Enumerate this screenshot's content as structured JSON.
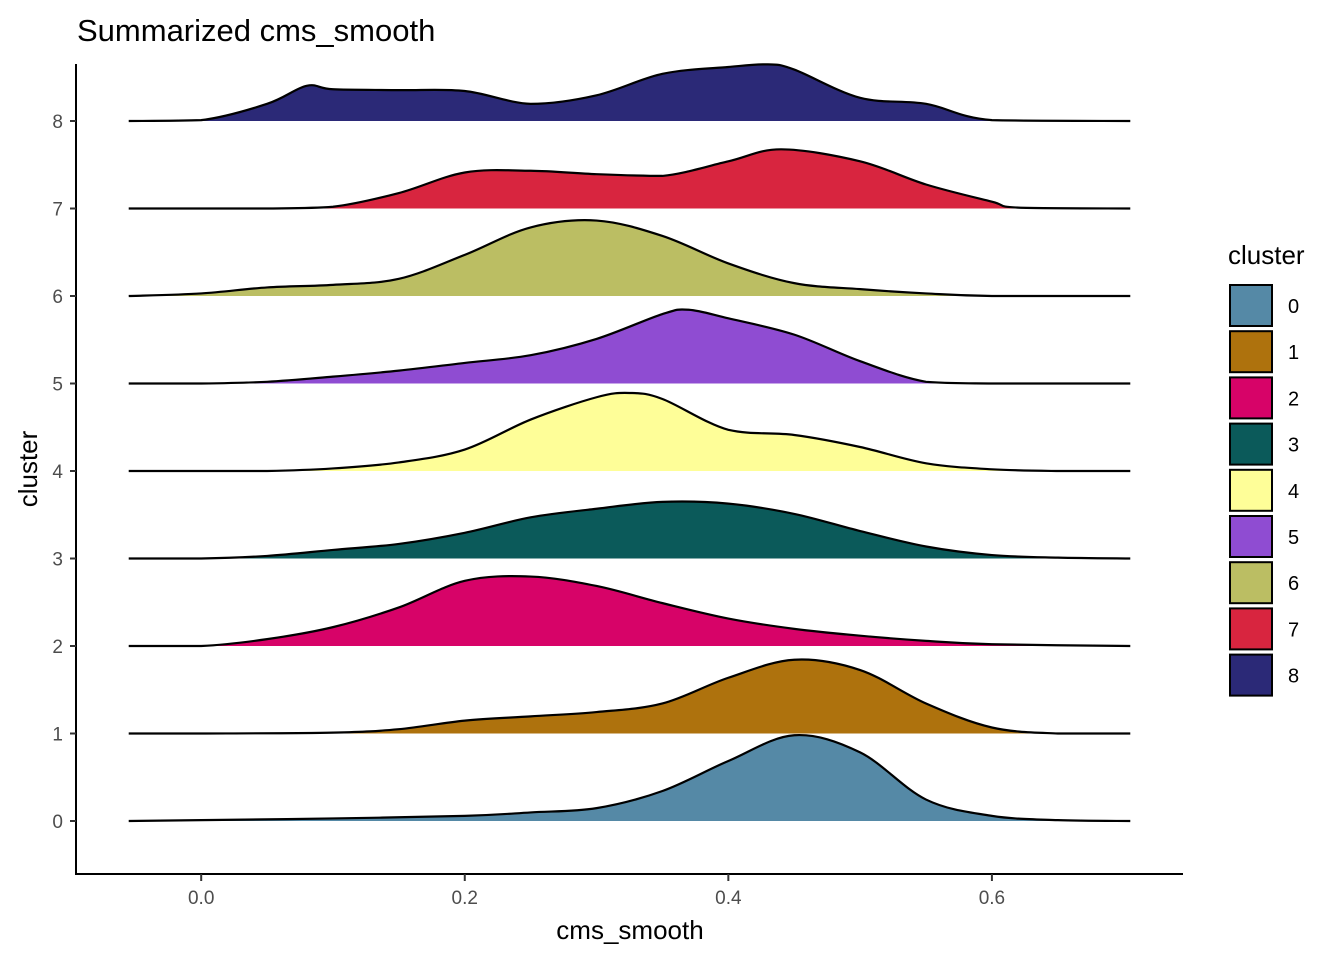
{
  "chart_data": {
    "type": "ridgeline",
    "title": "Summarized cms_smooth",
    "xlabel": "cms_smooth",
    "ylabel": "cluster",
    "xlim": [
      -0.095,
      0.745
    ],
    "x_ticks": [
      0.0,
      0.2,
      0.4,
      0.6
    ],
    "x_tick_labels": [
      "0.0",
      "0.2",
      "0.4",
      "0.6"
    ],
    "density_range": [
      -0.055,
      0.705
    ],
    "y_ticks": [
      0,
      1,
      2,
      3,
      4,
      5,
      6,
      7,
      8
    ],
    "y_tick_labels": [
      "0",
      "1",
      "2",
      "3",
      "4",
      "5",
      "6",
      "7",
      "8"
    ],
    "grid": false,
    "legend": {
      "title": "cluster",
      "position": "right"
    },
    "series": [
      {
        "name": "0",
        "color": "#5589A6",
        "x": [
          -0.055,
          0.0,
          0.1,
          0.2,
          0.25,
          0.3,
          0.35,
          0.4,
          0.45,
          0.5,
          0.55,
          0.6,
          0.65,
          0.705
        ],
        "y": [
          0.0,
          0.01,
          0.03,
          0.06,
          0.1,
          0.15,
          0.35,
          0.7,
          1.0,
          0.8,
          0.25,
          0.06,
          0.01,
          0.0
        ]
      },
      {
        "name": "1",
        "color": "#AE720D",
        "x": [
          -0.055,
          0.0,
          0.1,
          0.15,
          0.2,
          0.25,
          0.3,
          0.35,
          0.4,
          0.45,
          0.5,
          0.55,
          0.6,
          0.65,
          0.705
        ],
        "y": [
          0.0,
          0.0,
          0.01,
          0.05,
          0.15,
          0.2,
          0.25,
          0.35,
          0.65,
          0.86,
          0.74,
          0.35,
          0.07,
          0.0,
          0.0
        ]
      },
      {
        "name": "2",
        "color": "#D70368",
        "x": [
          -0.055,
          0.0,
          0.05,
          0.1,
          0.15,
          0.2,
          0.25,
          0.3,
          0.35,
          0.4,
          0.45,
          0.5,
          0.55,
          0.6,
          0.705
        ],
        "y": [
          0.0,
          0.0,
          0.08,
          0.22,
          0.45,
          0.76,
          0.81,
          0.7,
          0.5,
          0.32,
          0.2,
          0.12,
          0.06,
          0.02,
          0.0
        ]
      },
      {
        "name": "3",
        "color": "#0B5A5A",
        "x": [
          -0.055,
          0.0,
          0.05,
          0.1,
          0.15,
          0.2,
          0.25,
          0.3,
          0.35,
          0.4,
          0.45,
          0.5,
          0.55,
          0.6,
          0.65,
          0.705
        ],
        "y": [
          0.0,
          0.0,
          0.03,
          0.1,
          0.17,
          0.3,
          0.48,
          0.58,
          0.66,
          0.64,
          0.52,
          0.32,
          0.14,
          0.04,
          0.01,
          0.0
        ]
      },
      {
        "name": "4",
        "color": "#FEFE98",
        "x": [
          -0.055,
          0.0,
          0.05,
          0.1,
          0.15,
          0.2,
          0.25,
          0.3,
          0.325,
          0.35,
          0.4,
          0.45,
          0.5,
          0.55,
          0.6,
          0.65,
          0.705
        ],
        "y": [
          0.0,
          0.0,
          0.0,
          0.03,
          0.1,
          0.25,
          0.6,
          0.86,
          0.91,
          0.84,
          0.48,
          0.42,
          0.28,
          0.09,
          0.02,
          0.0,
          0.0
        ]
      },
      {
        "name": "5",
        "color": "#8F4CD2",
        "x": [
          -0.055,
          0.0,
          0.05,
          0.1,
          0.15,
          0.2,
          0.25,
          0.3,
          0.35,
          0.37,
          0.4,
          0.45,
          0.5,
          0.55,
          0.6,
          0.705
        ],
        "y": [
          0.0,
          0.0,
          0.02,
          0.08,
          0.15,
          0.24,
          0.33,
          0.52,
          0.81,
          0.86,
          0.76,
          0.57,
          0.26,
          0.02,
          0.0,
          0.0
        ]
      },
      {
        "name": "6",
        "color": "#BBBE63",
        "x": [
          -0.055,
          0.0,
          0.05,
          0.1,
          0.15,
          0.2,
          0.25,
          0.3,
          0.35,
          0.4,
          0.45,
          0.5,
          0.55,
          0.6,
          0.705
        ],
        "y": [
          0.0,
          0.03,
          0.1,
          0.13,
          0.2,
          0.48,
          0.8,
          0.88,
          0.7,
          0.38,
          0.15,
          0.08,
          0.03,
          0.0,
          0.0
        ]
      },
      {
        "name": "7",
        "color": "#D8253F",
        "x": [
          -0.055,
          0.0,
          0.05,
          0.1,
          0.15,
          0.2,
          0.25,
          0.3,
          0.35,
          0.4,
          0.44,
          0.5,
          0.55,
          0.6,
          0.62,
          0.705
        ],
        "y": [
          0.0,
          0.0,
          0.0,
          0.02,
          0.18,
          0.42,
          0.44,
          0.4,
          0.38,
          0.55,
          0.69,
          0.55,
          0.28,
          0.08,
          0.01,
          0.0
        ]
      },
      {
        "name": "8",
        "color": "#2B2977",
        "x": [
          -0.055,
          0.0,
          0.05,
          0.08,
          0.1,
          0.15,
          0.2,
          0.25,
          0.3,
          0.35,
          0.4,
          0.43,
          0.45,
          0.5,
          0.55,
          0.6,
          0.705
        ],
        "y": [
          0.0,
          0.01,
          0.2,
          0.41,
          0.37,
          0.36,
          0.35,
          0.2,
          0.3,
          0.55,
          0.63,
          0.66,
          0.6,
          0.27,
          0.2,
          0.01,
          0.0
        ]
      }
    ]
  }
}
